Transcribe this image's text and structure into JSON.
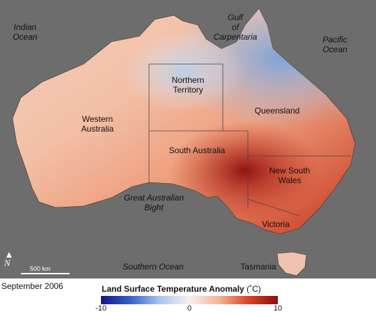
{
  "map": {
    "oceans": {
      "indian": "Indian\nOcean",
      "pacific": "Pacific\nOcean",
      "southern": "Southern Ocean",
      "gulf": "Gulf\nof\nCarpentaria",
      "bight": "Great Australian\nBight"
    },
    "regions": {
      "western_australia": "Western\nAustralia",
      "northern_territory": "Northern\nTerritory",
      "queensland": "Queensland",
      "south_australia": "South Australia",
      "new_south_wales": "New South\nWales",
      "victoria": "Victoria",
      "tasmania": "Tasmania"
    },
    "north_symbol": "N",
    "scale_label": "500 km",
    "date": "September 2006"
  },
  "legend": {
    "title": "Land Surface Temperature Anomaly",
    "unit": "(˚C)",
    "min_label": "-10",
    "mid_label": "0",
    "max_label": "10",
    "range": [
      -10,
      10
    ],
    "colors": {
      "cold": "#14148a",
      "neutral": "#f7f2ee",
      "hot": "#8e0d0d"
    }
  }
}
